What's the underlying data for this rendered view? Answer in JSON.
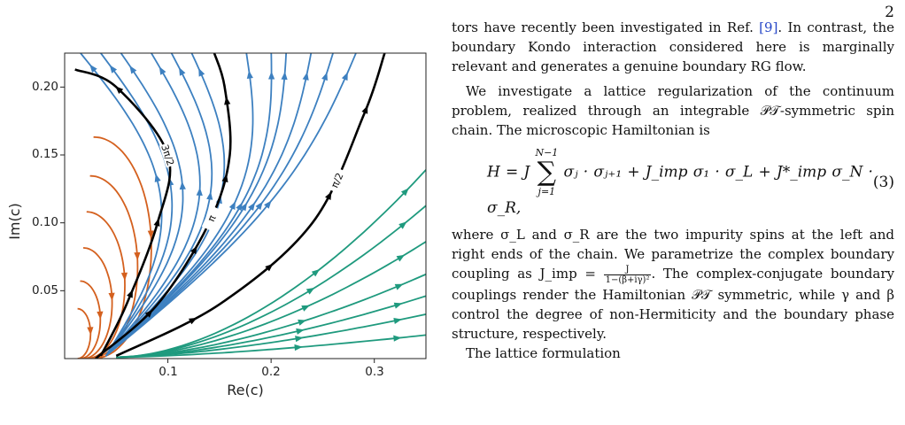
{
  "page_number": "2",
  "figure": {
    "xlabel": "Re(c)",
    "ylabel": "Im(c)",
    "x_ticks": [
      "0.1",
      "0.2",
      "0.3"
    ],
    "y_ticks": [
      "0.05",
      "0.10",
      "0.15",
      "0.20"
    ],
    "curve_labels": [
      "3π/2",
      "π",
      "π/2"
    ],
    "colors": {
      "orange": "#d4601e",
      "blue": "#3d80c0",
      "green": "#1f9a7e",
      "black": "#000000"
    }
  },
  "chart_data": {
    "type": "line",
    "title": "",
    "xlabel": "Re(c)",
    "ylabel": "Im(c)",
    "xlim": [
      0,
      0.35
    ],
    "ylim": [
      0,
      0.225
    ],
    "x_ticks": [
      0.1,
      0.2,
      0.3
    ],
    "y_ticks": [
      0.05,
      0.1,
      0.15,
      0.2
    ],
    "grid": false,
    "series": [
      {
        "name": "3π/2",
        "color": "#000000",
        "x": [
          0.035,
          0.06,
          0.09,
          0.1,
          0.05,
          0.01
        ],
        "y": [
          0.002,
          0.04,
          0.1,
          0.15,
          0.2,
          0.213
        ]
      },
      {
        "name": "π",
        "color": "#000000",
        "x": [
          0.03,
          0.09,
          0.14,
          0.16,
          0.155,
          0.145
        ],
        "y": [
          0.0,
          0.04,
          0.1,
          0.15,
          0.2,
          0.225
        ]
      },
      {
        "name": "π/2",
        "color": "#000000",
        "x": [
          0.05,
          0.15,
          0.24,
          0.29,
          0.31
        ],
        "y": [
          0.002,
          0.04,
          0.1,
          0.18,
          0.225
        ]
      }
    ]
  },
  "text": {
    "p1": "tors have recently been investigated in Ref. ",
    "p1_cite": "[9]",
    "p1_rest": ". In contrast, the boundary Kondo interaction considered here is marginally relevant and generates a genuine boundary RG flow.",
    "p2": "We investigate a lattice regularization of the continuum problem, realized through an integrable 𝒫𝒯-symmetric spin chain. The microscopic Hamiltonian is",
    "eq_lhs": "H = J",
    "eq_sum_top": "N−1",
    "eq_sum_bottom": "j=1",
    "eq_rhs": "σⱼ · σⱼ₊₁ + J_imp σ₁ · σ_L + J*_imp σ_N · σ_R,",
    "eq_number": "(3)",
    "p3a": "where σ_L and σ_R are the two impurity spins at the left and right ends of the chain. We parametrize the complex boundary coupling as J_imp = ",
    "frac_num": "J",
    "frac_den": "1−(β+iγ)²",
    "p3b": ". The complex-conjugate boundary couplings render the Hamiltonian 𝒫𝒯 symmetric, while γ and β control the degree of non-Hermiticity and the boundary phase structure, respectively.",
    "p4": "The lattice formulation"
  }
}
